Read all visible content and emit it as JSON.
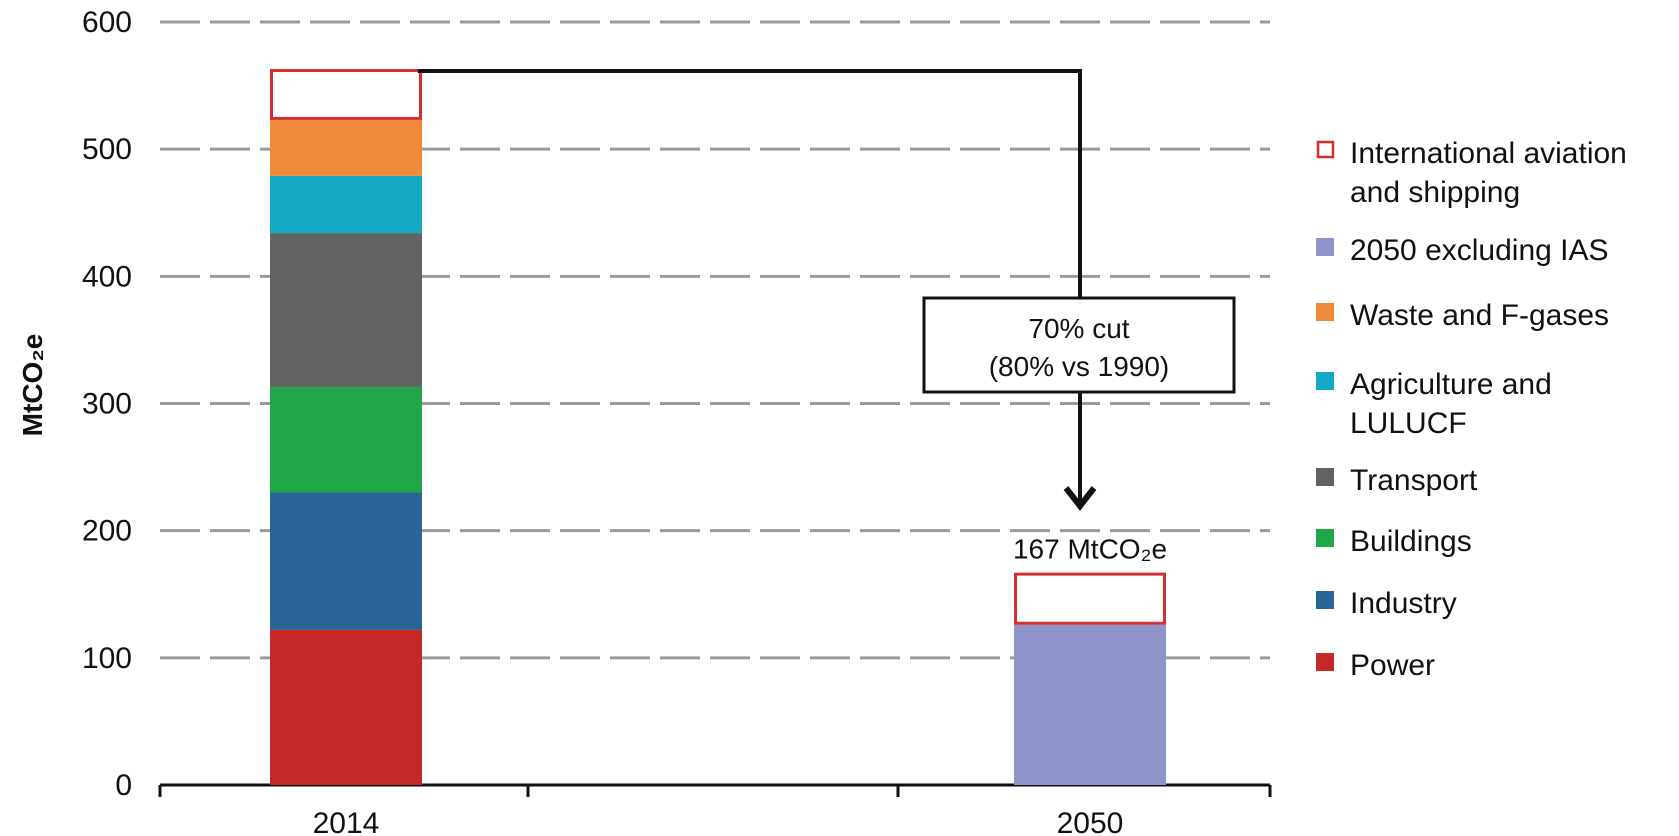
{
  "chart_data": {
    "type": "bar",
    "stacked": true,
    "categories": [
      "2014",
      "2050"
    ],
    "ylim": [
      0,
      600
    ],
    "yticks": [
      0,
      100,
      200,
      300,
      400,
      500,
      600
    ],
    "ylabel": "MtCO₂e",
    "grid": true,
    "legend_position": "right",
    "series": [
      {
        "name": "Power",
        "color": "#c62828",
        "values": [
          122,
          0
        ]
      },
      {
        "name": "Industry",
        "color": "#286496",
        "values": [
          108,
          0
        ]
      },
      {
        "name": "Buildings",
        "color": "#22a64a",
        "values": [
          83,
          0
        ]
      },
      {
        "name": "Transport",
        "color": "#606362",
        "values": [
          121,
          0
        ]
      },
      {
        "name": "Agriculture and LULUCF",
        "color": "#13a9c3",
        "values": [
          45,
          0
        ]
      },
      {
        "name": "Waste and F-gases",
        "color": "#ee8a3a",
        "values": [
          44,
          0
        ]
      },
      {
        "name": "2050 excluding IAS",
        "color": "#8e94c9",
        "values": [
          0,
          126
        ]
      },
      {
        "name": "International aviation and shipping",
        "color": "#d32f2f",
        "outline": true,
        "values": [
          40,
          41
        ]
      }
    ],
    "legend": [
      {
        "label": "International aviation",
        "label2": "and shipping",
        "color": "#d32f2f",
        "outline": true
      },
      {
        "label": "2050 excluding IAS",
        "color": "#8e94c9"
      },
      {
        "label": "Waste and F-gases",
        "color": "#ee8a3a"
      },
      {
        "label": "Agriculture and",
        "label2": "LULUCF",
        "color": "#13a9c3"
      },
      {
        "label": "Transport",
        "color": "#606362"
      },
      {
        "label": "Buildings",
        "color": "#22a64a"
      },
      {
        "label": "Industry",
        "color": "#286496"
      },
      {
        "label": "Power",
        "color": "#c62828"
      }
    ],
    "annotations": {
      "cut_line1": "70% cut",
      "cut_line2": "(80% vs 1990)",
      "total_2050": "167 MtCO₂e"
    }
  }
}
